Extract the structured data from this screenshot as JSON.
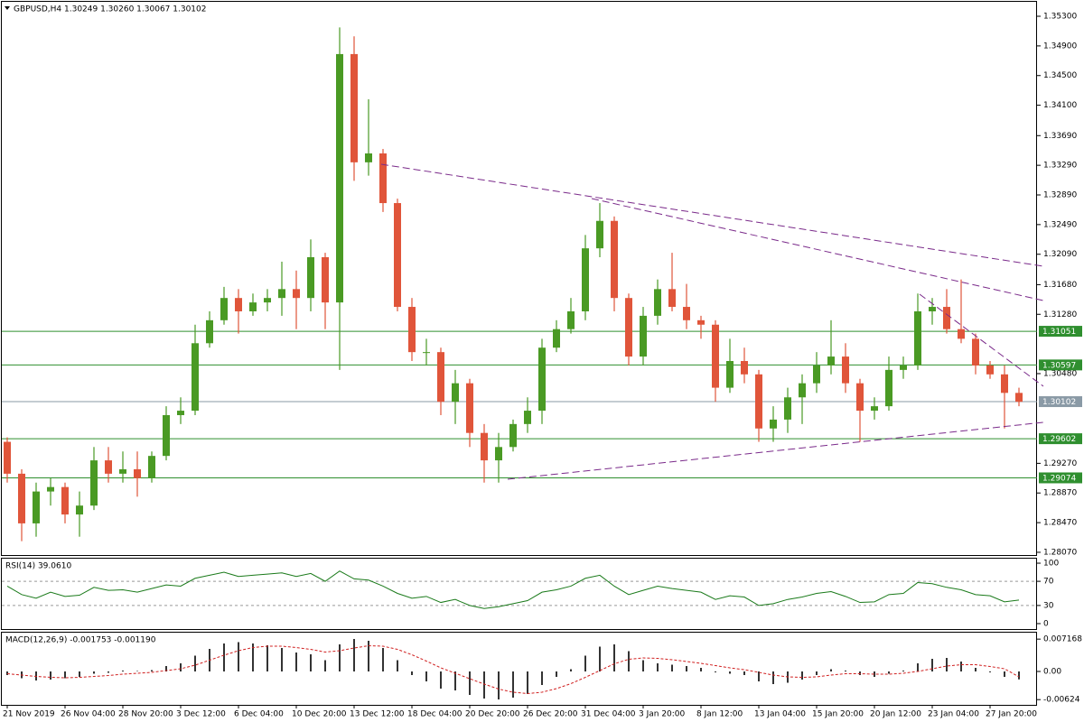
{
  "chart_data": [
    {
      "type": "candlestick",
      "title": "GBPUSD,H4  1.30249 1.30260 1.30067 1.30102",
      "up_color": "#4a9a24",
      "down_color": "#e0553a",
      "categories": [
        "21 Nov 2019",
        null,
        null,
        null,
        "26 Nov 04:00",
        null,
        null,
        null,
        "28 Nov 20:00",
        null,
        null,
        null,
        "3 Dec 12:00",
        null,
        null,
        null,
        "6 Dec 04:00",
        null,
        null,
        null,
        "10 Dec 20:00",
        null,
        null,
        null,
        "13 Dec 12:00",
        null,
        null,
        null,
        "18 Dec 04:00",
        null,
        null,
        null,
        "20 Dec 20:00",
        null,
        null,
        null,
        "26 Dec 20:00",
        null,
        null,
        null,
        "31 Dec 04:00",
        null,
        null,
        null,
        "3 Jan 20:00",
        null,
        null,
        null,
        "8 Jan 12:00",
        null,
        null,
        null,
        "13 Jan 04:00",
        null,
        null,
        null,
        "15 Jan 20:00",
        null,
        null,
        null,
        "20 Jan 12:00",
        null,
        null,
        null,
        "23 Jan 04:00",
        null,
        null,
        null,
        "27 Jan 20:00",
        null,
        null
      ],
      "ohlc": [
        [
          1.2956,
          1.2962,
          1.2901,
          1.2913
        ],
        [
          1.2913,
          1.2919,
          1.2822,
          1.2846
        ],
        [
          1.2846,
          1.2901,
          1.2828,
          1.2889
        ],
        [
          1.2889,
          1.2907,
          1.287,
          1.2895
        ],
        [
          1.2895,
          1.2901,
          1.2846,
          1.2858
        ],
        [
          1.2858,
          1.2889,
          1.2828,
          1.287
        ],
        [
          1.287,
          1.2949,
          1.2864,
          1.2931
        ],
        [
          1.2931,
          1.2949,
          1.2901,
          1.2913
        ],
        [
          1.2913,
          1.2943,
          1.2901,
          1.2919
        ],
        [
          1.2919,
          1.2943,
          1.2882,
          1.2907
        ],
        [
          1.2907,
          1.2943,
          1.2901,
          1.2937
        ],
        [
          1.2937,
          1.3004,
          1.2931,
          1.2992
        ],
        [
          1.2992,
          1.3016,
          1.298,
          1.2998
        ],
        [
          1.2998,
          1.3114,
          1.2992,
          1.3089
        ],
        [
          1.3089,
          1.3132,
          1.3083,
          1.312
        ],
        [
          1.312,
          1.3165,
          1.3114,
          1.315
        ],
        [
          1.315,
          1.3162,
          1.3102,
          1.3132
        ],
        [
          1.3132,
          1.3156,
          1.3126,
          1.3144
        ],
        [
          1.3144,
          1.3162,
          1.3132,
          1.315
        ],
        [
          1.315,
          1.3199,
          1.3126,
          1.3162
        ],
        [
          1.3162,
          1.3187,
          1.3108,
          1.315
        ],
        [
          1.315,
          1.3229,
          1.3132,
          1.3205
        ],
        [
          1.3205,
          1.3211,
          1.3108,
          1.3144
        ],
        [
          1.3144,
          1.3515,
          1.3053,
          1.3479
        ],
        [
          1.3479,
          1.3503,
          1.3308,
          1.3333
        ],
        [
          1.3333,
          1.3418,
          1.3315,
          1.3345
        ],
        [
          1.3345,
          1.3351,
          1.3266,
          1.3278
        ],
        [
          1.3278,
          1.3284,
          1.3132,
          1.3138
        ],
        [
          1.3138,
          1.315,
          1.3065,
          1.3077
        ],
        [
          1.3077,
          1.3095,
          1.3059,
          1.3077
        ],
        [
          1.3077,
          1.3083,
          1.2992,
          1.301
        ],
        [
          1.301,
          1.3053,
          1.298,
          1.3035
        ],
        [
          1.3035,
          1.3041,
          1.2949,
          1.2968
        ],
        [
          1.2968,
          1.298,
          1.2901,
          1.2931
        ],
        [
          1.2931,
          1.2968,
          1.2901,
          1.2949
        ],
        [
          1.2949,
          1.2986,
          1.2943,
          1.298
        ],
        [
          1.298,
          1.3016,
          1.2968,
          1.2998
        ],
        [
          1.2998,
          1.3095,
          1.298,
          1.3083
        ],
        [
          1.3083,
          1.312,
          1.3077,
          1.3108
        ],
        [
          1.3108,
          1.315,
          1.3102,
          1.3132
        ],
        [
          1.3132,
          1.3235,
          1.312,
          1.3217
        ],
        [
          1.3217,
          1.3278,
          1.3205,
          1.3254
        ],
        [
          1.3254,
          1.326,
          1.3132,
          1.315
        ],
        [
          1.315,
          1.3156,
          1.3059,
          1.3071
        ],
        [
          1.3071,
          1.3138,
          1.3059,
          1.3126
        ],
        [
          1.3126,
          1.3175,
          1.3114,
          1.3162
        ],
        [
          1.3162,
          1.3211,
          1.3132,
          1.3138
        ],
        [
          1.3138,
          1.3169,
          1.3108,
          1.312
        ],
        [
          1.312,
          1.3126,
          1.3095,
          1.3114
        ],
        [
          1.3114,
          1.312,
          1.301,
          1.3029
        ],
        [
          1.3029,
          1.3095,
          1.3022,
          1.3065
        ],
        [
          1.3065,
          1.3083,
          1.3035,
          1.3047
        ],
        [
          1.3047,
          1.3053,
          1.2956,
          1.2974
        ],
        [
          1.2974,
          1.3004,
          1.2956,
          1.2986
        ],
        [
          1.2986,
          1.3029,
          1.2968,
          1.3016
        ],
        [
          1.3016,
          1.3047,
          1.298,
          1.3035
        ],
        [
          1.3035,
          1.3077,
          1.3022,
          1.3059
        ],
        [
          1.3059,
          1.312,
          1.3047,
          1.3071
        ],
        [
          1.3071,
          1.3089,
          1.3022,
          1.3035
        ],
        [
          1.3035,
          1.3041,
          1.2956,
          1.2998
        ],
        [
          1.2998,
          1.3016,
          1.2986,
          1.3004
        ],
        [
          1.3004,
          1.3071,
          1.2998,
          1.3053
        ],
        [
          1.3053,
          1.3071,
          1.3041,
          1.3059
        ],
        [
          1.3059,
          1.3156,
          1.3053,
          1.3132
        ],
        [
          1.3132,
          1.315,
          1.3114,
          1.3138
        ],
        [
          1.3138,
          1.3162,
          1.3102,
          1.3108
        ],
        [
          1.3108,
          1.3175,
          1.3089,
          1.3095
        ],
        [
          1.3095,
          1.3102,
          1.3047,
          1.3059
        ],
        [
          1.3059,
          1.3065,
          1.3041,
          1.3047
        ],
        [
          1.3047,
          1.3059,
          1.2974,
          1.3022
        ],
        [
          1.3022,
          1.3029,
          1.3004,
          1.301
        ]
      ],
      "hlines": [
        {
          "value": 1.31051,
          "color": "#2f8f2f"
        },
        {
          "value": 1.30597,
          "color": "#2f8f2f"
        },
        {
          "value": 1.30102,
          "color": "#8a9aa6"
        },
        {
          "value": 1.29602,
          "color": "#2f8f2f"
        },
        {
          "value": 1.29074,
          "color": "#2f8f2f"
        }
      ],
      "ylim": [
        1.28033,
        1.35495
      ],
      "yticks": [
        {
          "value": 1.353,
          "label": "1.35300"
        },
        {
          "value": 1.349,
          "label": "1.34900"
        },
        {
          "value": 1.345,
          "label": "1.34500"
        },
        {
          "value": 1.341,
          "label": "1.34100"
        },
        {
          "value": 1.3369,
          "label": "1.33690"
        },
        {
          "value": 1.3329,
          "label": "1.33290"
        },
        {
          "value": 1.3289,
          "label": "1.32890"
        },
        {
          "value": 1.3249,
          "label": "1.32490"
        },
        {
          "value": 1.3209,
          "label": "1.32090"
        },
        {
          "value": 1.3168,
          "label": "1.31680"
        },
        {
          "value": 1.3128,
          "label": "1.31280"
        },
        {
          "value": 1.3048,
          "label": "1.30480"
        },
        {
          "value": 1.2927,
          "label": "1.29270"
        },
        {
          "value": 1.2887,
          "label": "1.28870"
        },
        {
          "value": 1.2847,
          "label": "1.28470"
        },
        {
          "value": 1.2807,
          "label": "1.28070"
        }
      ]
    },
    {
      "type": "line",
      "title": "RSI(14) 39.0610",
      "color": "#1a7a1a",
      "values": [
        62,
        48,
        42,
        52,
        45,
        47,
        60,
        55,
        56,
        52,
        58,
        64,
        62,
        75,
        80,
        85,
        78,
        80,
        82,
        84,
        78,
        83,
        70,
        87,
        74,
        72,
        62,
        50,
        42,
        45,
        35,
        40,
        30,
        25,
        28,
        33,
        38,
        52,
        56,
        62,
        75,
        80,
        62,
        48,
        55,
        62,
        58,
        55,
        52,
        40,
        46,
        44,
        30,
        33,
        40,
        44,
        50,
        53,
        45,
        35,
        36,
        48,
        50,
        68,
        66,
        60,
        56,
        48,
        46,
        36,
        39
      ],
      "levels": [
        70,
        30
      ],
      "ylim": [
        -9,
        109
      ],
      "yticks": [
        100,
        70,
        30,
        0
      ]
    },
    {
      "type": "macd",
      "title": "MACD(12,26,9) -0.001753 -0.001190",
      "series": [
        {
          "name": "MACD",
          "color": "#333333",
          "values": [
            -0.0008,
            -0.0015,
            -0.002,
            -0.0018,
            -0.0015,
            -0.0012,
            -0.0005,
            -0.0003,
            0.0002,
            0.0001,
            0.0003,
            0.0012,
            0.0018,
            0.0035,
            0.005,
            0.0062,
            0.0065,
            0.0062,
            0.0058,
            0.0052,
            0.0042,
            0.0038,
            0.0025,
            0.006,
            0.0072,
            0.0068,
            0.0052,
            0.0025,
            -0.0008,
            -0.0022,
            -0.0038,
            -0.0042,
            -0.0052,
            -0.006,
            -0.0062,
            -0.0058,
            -0.005,
            -0.003,
            -0.0012,
            0.0005,
            0.0035,
            0.0055,
            0.006,
            0.0045,
            0.0025,
            0.0018,
            0.0015,
            0.0012,
            0.0008,
            -0.0002,
            -0.0005,
            -0.0008,
            -0.0022,
            -0.0028,
            -0.0025,
            -0.0018,
            -0.0008,
            0.0005,
            0.0002,
            -0.0008,
            -0.0012,
            -0.0005,
            0.0002,
            0.0018,
            0.0028,
            0.003,
            0.0022,
            0.0008,
            -0.0002,
            -0.0012,
            -0.001753
          ]
        },
        {
          "name": "Signal",
          "color": "#d02020",
          "values": [
            -0.0005,
            -0.0008,
            -0.0011,
            -0.0013,
            -0.0014,
            -0.0013,
            -0.0011,
            -0.0009,
            -0.0006,
            -0.0004,
            -0.0002,
            0.0002,
            0.0006,
            0.0014,
            0.0025,
            0.0036,
            0.0046,
            0.0053,
            0.0056,
            0.0056,
            0.0053,
            0.0049,
            0.0043,
            0.0046,
            0.0052,
            0.0057,
            0.0056,
            0.0049,
            0.0037,
            0.0023,
            0.0008,
            -0.0004,
            -0.0016,
            -0.0028,
            -0.0039,
            -0.0046,
            -0.0049,
            -0.0046,
            -0.0038,
            -0.0027,
            -0.0013,
            0.0002,
            0.0017,
            0.0027,
            0.003,
            0.0029,
            0.0026,
            0.0022,
            0.0018,
            0.0013,
            0.0008,
            0.0004,
            -0.0002,
            -0.0008,
            -0.0012,
            -0.0013,
            -0.0012,
            -0.0008,
            -0.0005,
            -0.0005,
            -0.0006,
            -0.0006,
            -0.0004,
            0,
            0.0006,
            0.0012,
            0.0015,
            0.0015,
            0.0011,
            0.0006,
            -0.00119
          ]
        }
      ],
      "ylim": [
        -0.0074,
        0.0088
      ],
      "yticks": [
        0.007168,
        {
          "value": 0,
          "label": "0.00"
        },
        -0.00624
      ]
    }
  ]
}
